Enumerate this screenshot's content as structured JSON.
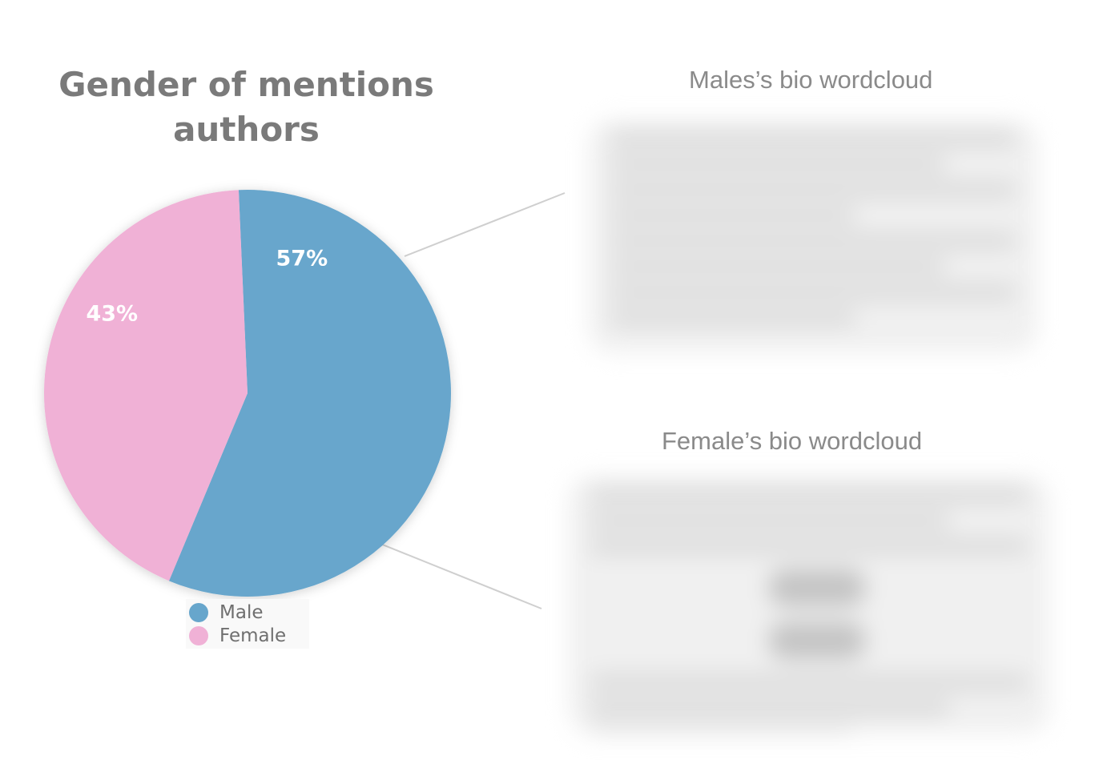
{
  "chart_data": {
    "type": "pie",
    "title": "Gender of mentions authors",
    "categories": [
      "Male",
      "Female"
    ],
    "values": [
      57,
      43
    ],
    "value_labels": [
      "57%",
      "43%"
    ],
    "colors": [
      "#67a6cc",
      "#f0b1d6"
    ],
    "legend": {
      "placement": "bottom"
    }
  },
  "wordclouds": {
    "males_title": "Males’s bio wordcloud",
    "females_title": "Female’s bio wordcloud"
  }
}
